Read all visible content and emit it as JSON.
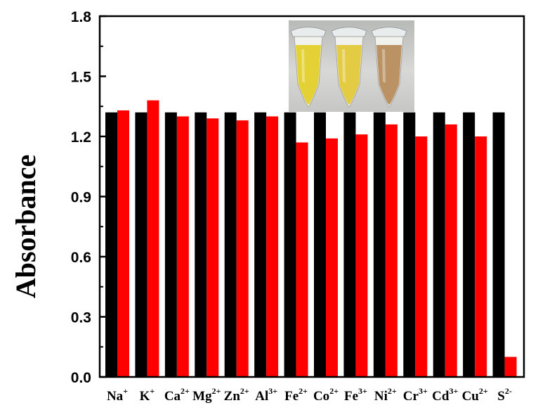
{
  "chart_data": {
    "type": "bar",
    "ylabel": "Absorbance",
    "xlabel": "",
    "ylim": [
      0.0,
      1.8
    ],
    "yticks": [
      "0.0",
      "0.3",
      "0.6",
      "0.9",
      "1.2",
      "1.5",
      "1.8"
    ],
    "grid": false,
    "categories": [
      {
        "base": "Na",
        "sup": "+"
      },
      {
        "base": "K",
        "sup": "+"
      },
      {
        "base": "Ca",
        "sup": "2+"
      },
      {
        "base": "Mg",
        "sup": "2+"
      },
      {
        "base": "Zn",
        "sup": "2+"
      },
      {
        "base": "Al",
        "sup": "3+"
      },
      {
        "base": "Fe",
        "sup": "2+"
      },
      {
        "base": "Co",
        "sup": "2+"
      },
      {
        "base": "Fe",
        "sup": "3+"
      },
      {
        "base": "Ni",
        "sup": "2+"
      },
      {
        "base": "Cr",
        "sup": "3+"
      },
      {
        "base": "Cd",
        "sup": "3+"
      },
      {
        "base": "Cu",
        "sup": "2+"
      },
      {
        "base": "S",
        "sup": "2-"
      }
    ],
    "series": [
      {
        "color": "#000000",
        "values": [
          1.32,
          1.32,
          1.32,
          1.32,
          1.32,
          1.32,
          1.32,
          1.32,
          1.32,
          1.32,
          1.32,
          1.32,
          1.32,
          1.32
        ]
      },
      {
        "color": "#ff0000",
        "values": [
          1.33,
          1.38,
          1.3,
          1.29,
          1.28,
          1.3,
          1.17,
          1.19,
          1.21,
          1.26,
          1.2,
          1.26,
          1.2,
          0.1
        ]
      }
    ],
    "inset": {
      "type": "photo",
      "subject": "three-sample-tubes",
      "tube_colors": [
        "#e3cf2a",
        "#e2c83a",
        "#b78c5c"
      ]
    }
  }
}
